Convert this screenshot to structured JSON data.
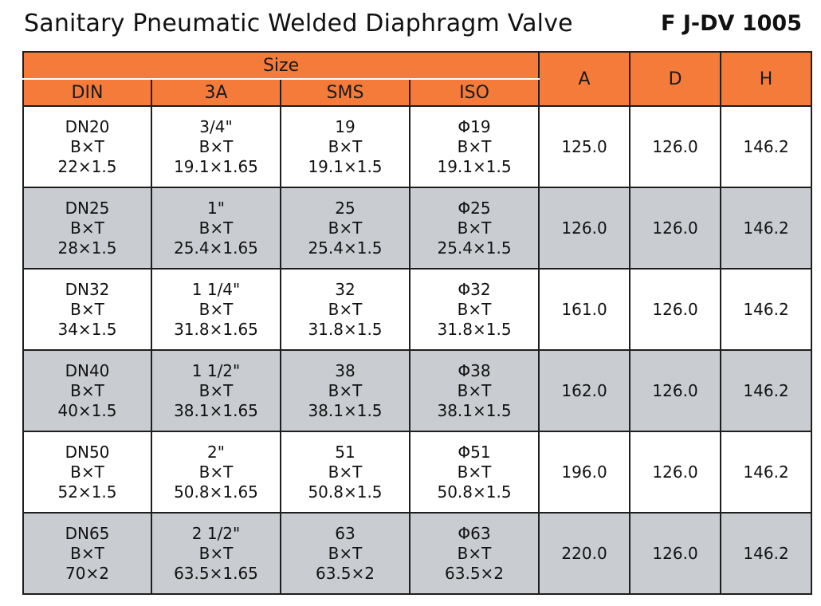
{
  "header": {
    "title": "Sanitary Pneumatic Welded Diaphragm Valve",
    "model": "F J-DV 1005"
  },
  "table": {
    "group_header": "Size",
    "columns": {
      "din": "DIN",
      "3a": "3A",
      "sms": "SMS",
      "iso": "ISO",
      "a": "A",
      "d": "D",
      "h": "H"
    },
    "colors": {
      "header_bg": "#f47b39",
      "shaded_row_bg": "#c9ccd0",
      "plain_row_bg": "#ffffff",
      "border": "#1e1e1e"
    },
    "rows": [
      {
        "din": [
          "DN20",
          "B×T",
          "22×1.5"
        ],
        "3a": [
          "3/4\"",
          "B×T",
          "19.1×1.65"
        ],
        "sms": [
          "19",
          "B×T",
          "19.1×1.5"
        ],
        "iso": [
          "Φ19",
          "B×T",
          "19.1×1.5"
        ],
        "a": "125.0",
        "d": "126.0",
        "h": "146.2"
      },
      {
        "din": [
          "DN25",
          "B×T",
          "28×1.5"
        ],
        "3a": [
          "1\"",
          "B×T",
          "25.4×1.65"
        ],
        "sms": [
          "25",
          "B×T",
          "25.4×1.5"
        ],
        "iso": [
          "Φ25",
          "B×T",
          "25.4×1.5"
        ],
        "a": "126.0",
        "d": "126.0",
        "h": "146.2"
      },
      {
        "din": [
          "DN32",
          "B×T",
          "34×1.5"
        ],
        "3a": [
          "1 1/4\"",
          "B×T",
          "31.8×1.65"
        ],
        "sms": [
          "32",
          "B×T",
          "31.8×1.5"
        ],
        "iso": [
          "Φ32",
          "B×T",
          "31.8×1.5"
        ],
        "a": "161.0",
        "d": "126.0",
        "h": "146.2"
      },
      {
        "din": [
          "DN40",
          "B×T",
          "40×1.5"
        ],
        "3a": [
          "1 1/2\"",
          "B×T",
          "38.1×1.65"
        ],
        "sms": [
          "38",
          "B×T",
          "38.1×1.5"
        ],
        "iso": [
          "Φ38",
          "B×T",
          "38.1×1.5"
        ],
        "a": "162.0",
        "d": "126.0",
        "h": "146.2"
      },
      {
        "din": [
          "DN50",
          "B×T",
          "52×1.5"
        ],
        "3a": [
          "2\"",
          "B×T",
          "50.8×1.65"
        ],
        "sms": [
          "51",
          "B×T",
          "50.8×1.5"
        ],
        "iso": [
          "Φ51",
          "B×T",
          "50.8×1.5"
        ],
        "a": "196.0",
        "d": "126.0",
        "h": "146.2"
      },
      {
        "din": [
          "DN65",
          "B×T",
          "70×2"
        ],
        "3a": [
          "2 1/2\"",
          "B×T",
          "63.5×1.65"
        ],
        "sms": [
          "63",
          "B×T",
          "63.5×2"
        ],
        "iso": [
          "Φ63",
          "B×T",
          "63.5×2"
        ],
        "a": "220.0",
        "d": "126.0",
        "h": "146.2"
      }
    ]
  }
}
